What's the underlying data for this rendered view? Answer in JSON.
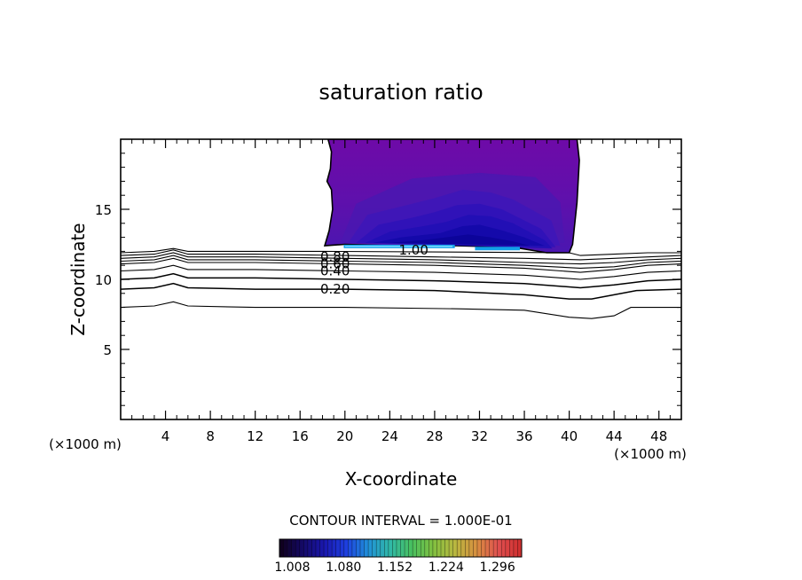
{
  "chart_data": {
    "type": "contour",
    "title": "saturation ratio",
    "xlabel": "X-coordinate",
    "ylabel": "Z-coordinate",
    "x_unit": "(×1000 m)",
    "z_unit": "(×1000 m)",
    "xlim": [
      0,
      50
    ],
    "ylim": [
      0,
      20
    ],
    "x_ticks": [
      4,
      8,
      12,
      16,
      20,
      24,
      28,
      32,
      36,
      40,
      44,
      48
    ],
    "x_tick_labels": [
      "4",
      "8",
      "12",
      "16",
      "20",
      "24",
      "28",
      "32",
      "36",
      "40",
      "44",
      "48"
    ],
    "y_ticks": [
      5,
      10,
      15
    ],
    "y_tick_labels": [
      "5",
      "10",
      "15"
    ],
    "contour_interval_text": "CONTOUR INTERVAL = 1.000E-01",
    "contour_levels": [
      0.1,
      0.2,
      0.3,
      0.4,
      0.5,
      0.6,
      0.7,
      0.8,
      0.9,
      1.0
    ],
    "contour_labels": [
      {
        "text": "0.20",
        "x": 17.8,
        "z": 9.3
      },
      {
        "text": "0.40",
        "x": 17.8,
        "z": 10.6
      },
      {
        "text": "0.60",
        "x": 17.8,
        "z": 11.1
      },
      {
        "text": "0.80",
        "x": 17.8,
        "z": 11.6
      },
      {
        "text": "1.00",
        "x": 24.8,
        "z": 12.1
      }
    ],
    "contour_lines": [
      {
        "level": 0.1,
        "points": [
          [
            0,
            8.0
          ],
          [
            3,
            8.1
          ],
          [
            4.7,
            8.4
          ],
          [
            6,
            8.1
          ],
          [
            12,
            8.0
          ],
          [
            20,
            8.0
          ],
          [
            30,
            7.9
          ],
          [
            36,
            7.8
          ],
          [
            40,
            7.3
          ],
          [
            42,
            7.2
          ],
          [
            44,
            7.4
          ],
          [
            45.5,
            8.0
          ],
          [
            50,
            8.0
          ]
        ]
      },
      {
        "level": 0.2,
        "points": [
          [
            0,
            9.3
          ],
          [
            3,
            9.4
          ],
          [
            4.7,
            9.7
          ],
          [
            6,
            9.4
          ],
          [
            12,
            9.3
          ],
          [
            20,
            9.3
          ],
          [
            28,
            9.2
          ],
          [
            36,
            8.9
          ],
          [
            40,
            8.6
          ],
          [
            42,
            8.6
          ],
          [
            44,
            8.9
          ],
          [
            46,
            9.2
          ],
          [
            50,
            9.3
          ]
        ]
      },
      {
        "level": 0.3,
        "points": [
          [
            0,
            10.0
          ],
          [
            3,
            10.1
          ],
          [
            4.7,
            10.4
          ],
          [
            6,
            10.1
          ],
          [
            12,
            10.1
          ],
          [
            20,
            10.0
          ],
          [
            28,
            9.9
          ],
          [
            36,
            9.7
          ],
          [
            41,
            9.4
          ],
          [
            44,
            9.6
          ],
          [
            47,
            9.9
          ],
          [
            50,
            10.0
          ]
        ]
      },
      {
        "level": 0.4,
        "points": [
          [
            0,
            10.6
          ],
          [
            3,
            10.7
          ],
          [
            4.7,
            11.0
          ],
          [
            6,
            10.7
          ],
          [
            12,
            10.7
          ],
          [
            20,
            10.6
          ],
          [
            28,
            10.5
          ],
          [
            36,
            10.3
          ],
          [
            41,
            10.0
          ],
          [
            44,
            10.2
          ],
          [
            47,
            10.5
          ],
          [
            50,
            10.6
          ]
        ]
      },
      {
        "level": 0.5,
        "points": [
          [
            0,
            11.1
          ],
          [
            3,
            11.2
          ],
          [
            4.7,
            11.5
          ],
          [
            6,
            11.2
          ],
          [
            12,
            11.2
          ],
          [
            20,
            11.1
          ],
          [
            28,
            11.0
          ],
          [
            36,
            10.8
          ],
          [
            41,
            10.5
          ],
          [
            44,
            10.7
          ],
          [
            47,
            11.0
          ],
          [
            50,
            11.1
          ]
        ]
      },
      {
        "level": 0.6,
        "points": [
          [
            0,
            11.3
          ],
          [
            3,
            11.4
          ],
          [
            4.7,
            11.7
          ],
          [
            6,
            11.4
          ],
          [
            12,
            11.4
          ],
          [
            20,
            11.3
          ],
          [
            28,
            11.2
          ],
          [
            36,
            11.0
          ],
          [
            41,
            10.8
          ],
          [
            44,
            10.9
          ],
          [
            47,
            11.2
          ],
          [
            50,
            11.3
          ]
        ]
      },
      {
        "level": 0.7,
        "points": [
          [
            0,
            11.5
          ],
          [
            3,
            11.6
          ],
          [
            4.7,
            11.9
          ],
          [
            6,
            11.6
          ],
          [
            12,
            11.6
          ],
          [
            20,
            11.5
          ],
          [
            28,
            11.4
          ],
          [
            36,
            11.2
          ],
          [
            41,
            11.1
          ],
          [
            44,
            11.2
          ],
          [
            47,
            11.4
          ],
          [
            50,
            11.5
          ]
        ]
      },
      {
        "level": 0.8,
        "points": [
          [
            0,
            11.7
          ],
          [
            3,
            11.8
          ],
          [
            4.7,
            12.1
          ],
          [
            6,
            11.8
          ],
          [
            12,
            11.8
          ],
          [
            20,
            11.7
          ],
          [
            28,
            11.6
          ],
          [
            36,
            11.5
          ],
          [
            41,
            11.4
          ],
          [
            44,
            11.5
          ],
          [
            47,
            11.6
          ],
          [
            50,
            11.7
          ]
        ]
      },
      {
        "level": 0.9,
        "points": [
          [
            0,
            11.9
          ],
          [
            3,
            12.0
          ],
          [
            4.7,
            12.2
          ],
          [
            6,
            12.0
          ],
          [
            12,
            12.0
          ],
          [
            18,
            12.0
          ],
          [
            40,
            11.9
          ],
          [
            41,
            11.7
          ],
          [
            44,
            11.8
          ],
          [
            47,
            11.9
          ],
          [
            50,
            11.9
          ]
        ]
      }
    ],
    "cloud_boundary": [
      [
        18.5,
        20
      ],
      [
        18.8,
        19.1
      ],
      [
        18.7,
        17.9
      ],
      [
        18.4,
        17.0
      ],
      [
        18.8,
        16.4
      ],
      [
        18.9,
        15.0
      ],
      [
        18.6,
        13.5
      ],
      [
        18.2,
        12.4
      ],
      [
        20,
        12.5
      ],
      [
        24,
        12.4
      ],
      [
        30,
        12.4
      ],
      [
        35,
        12.3
      ],
      [
        38,
        11.9
      ],
      [
        40,
        11.9
      ],
      [
        40.3,
        12.5
      ],
      [
        40.5,
        14.0
      ],
      [
        40.7,
        15.5
      ],
      [
        40.8,
        17.0
      ],
      [
        40.9,
        18.5
      ],
      [
        40.7,
        20
      ]
    ],
    "filled_regions": [
      {
        "value": 1.12,
        "color": "#4a18b0",
        "points": [
          [
            19.6,
            12.6
          ],
          [
            21,
            15.4
          ],
          [
            26,
            17.2
          ],
          [
            32,
            17.6
          ],
          [
            37,
            17.3
          ],
          [
            39.2,
            15.5
          ],
          [
            39.6,
            12.6
          ]
        ]
      },
      {
        "value": 1.16,
        "color": "#3d16b8",
        "points": [
          [
            20.3,
            12.6
          ],
          [
            22,
            14.6
          ],
          [
            26,
            15.4
          ],
          [
            28,
            15.8
          ],
          [
            30.5,
            16.4
          ],
          [
            33,
            16.2
          ],
          [
            35,
            15.7
          ],
          [
            38.4,
            14.2
          ],
          [
            39.2,
            12.4
          ]
        ]
      },
      {
        "value": 1.2,
        "color": "#2e12b8",
        "points": [
          [
            21,
            12.6
          ],
          [
            23,
            13.9
          ],
          [
            26,
            14.4
          ],
          [
            28,
            14.8
          ],
          [
            30,
            15.3
          ],
          [
            32,
            15.4
          ],
          [
            34,
            15.0
          ],
          [
            37.5,
            13.6
          ],
          [
            38.8,
            12.3
          ]
        ]
      },
      {
        "value": 1.24,
        "color": "#200fb4",
        "points": [
          [
            21.8,
            12.6
          ],
          [
            24,
            13.4
          ],
          [
            27,
            13.8
          ],
          [
            29,
            14.1
          ],
          [
            31,
            14.6
          ],
          [
            33,
            14.5
          ],
          [
            35,
            14.0
          ],
          [
            37.8,
            12.8
          ],
          [
            38.5,
            12.2
          ]
        ]
      },
      {
        "value": 1.28,
        "color": "#1208a8",
        "points": [
          [
            22.5,
            12.6
          ],
          [
            25,
            13.0
          ],
          [
            28.5,
            13.3
          ],
          [
            30.5,
            13.8
          ],
          [
            32,
            13.9
          ],
          [
            34,
            13.5
          ],
          [
            36,
            13.0
          ],
          [
            37.8,
            12.4
          ]
        ]
      },
      {
        "value": 1.32,
        "color": "#0a0498",
        "points": [
          [
            24,
            12.6
          ],
          [
            27,
            12.8
          ],
          [
            29,
            13.0
          ],
          [
            31,
            13.2
          ],
          [
            33,
            13.0
          ],
          [
            35,
            12.7
          ],
          [
            36.5,
            12.4
          ]
        ]
      }
    ],
    "cloud_base_bands": [
      {
        "color": "#12a0e8",
        "x0": 19.9,
        "x1": 29.8,
        "z": 12.35,
        "thickness": 0.25
      },
      {
        "color": "#7ad8ff",
        "x0": 20.0,
        "x1": 29.6,
        "z": 12.35,
        "thickness": 0.1
      },
      {
        "color": "#12a0e8",
        "x0": 31.6,
        "x1": 35.6,
        "z": 12.2,
        "thickness": 0.25
      }
    ],
    "colorbar": {
      "min": 0.99,
      "max": 1.33,
      "tick_values": [
        1.008,
        1.08,
        1.152,
        1.224,
        1.296
      ],
      "tick_labels": [
        "1.008",
        "1.080",
        "1.152",
        "1.224",
        "1.296"
      ],
      "colors": [
        "#100020",
        "#140a68",
        "#1a18b0",
        "#1e40e0",
        "#2090d8",
        "#30b8a8",
        "#48c060",
        "#80c040",
        "#b8b840",
        "#d89040",
        "#e05050",
        "#d03030"
      ]
    }
  }
}
